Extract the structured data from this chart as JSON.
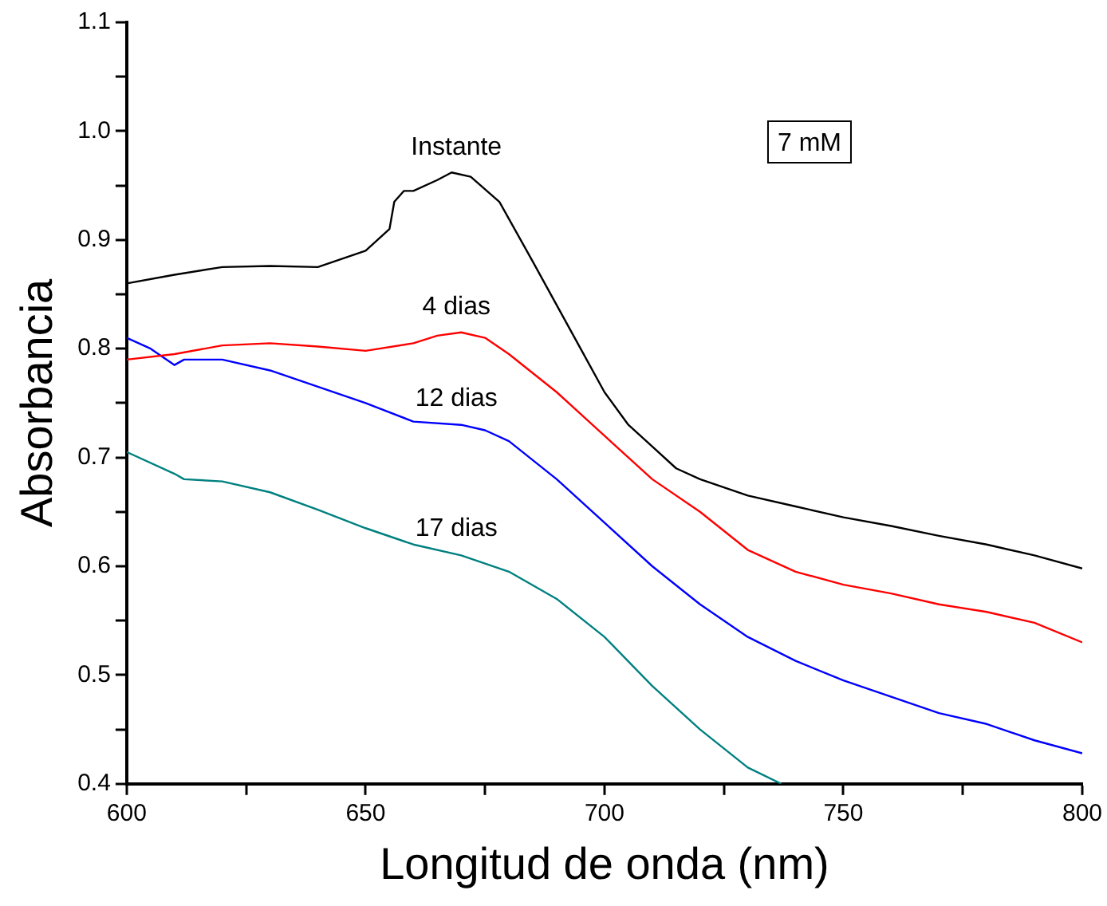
{
  "chart_data": {
    "type": "line",
    "xlabel": "Longitud de onda (nm)",
    "ylabel": "Absorbancia",
    "xlim": [
      600,
      800
    ],
    "ylim": [
      0.4,
      1.1
    ],
    "xticks": [
      600,
      650,
      700,
      750,
      800
    ],
    "yticks": [
      0.4,
      0.5,
      0.6,
      0.7,
      0.8,
      0.9,
      {
        "value": 1,
        "label": "1.0"
      },
      1.1
    ],
    "grid": false,
    "legend": false,
    "marker": "none",
    "line_style": "solid",
    "x": [
      600,
      610,
      620,
      630,
      640,
      650,
      655,
      656,
      658,
      660,
      665,
      668,
      672,
      678,
      685,
      690,
      695,
      700,
      705,
      710,
      715,
      720,
      730,
      740,
      750,
      760,
      770,
      780,
      790,
      800
    ],
    "series": [
      {
        "name": "Instante",
        "color": "#000000",
        "values": [
          0.86,
          0.868,
          0.875,
          0.876,
          0.875,
          0.89,
          0.91,
          0.935,
          0.945,
          0.945,
          0.955,
          0.962,
          0.958,
          0.935,
          0.88,
          0.84,
          0.8,
          0.76,
          0.73,
          0.71,
          0.69,
          0.68,
          0.665,
          0.655,
          0.645,
          0.637,
          0.628,
          0.62,
          0.61,
          0.598
        ]
      },
      {
        "name": "4 dias",
        "color": "#ff0000",
        "x": [
          600,
          610,
          620,
          630,
          640,
          650,
          660,
          665,
          670,
          675,
          680,
          690,
          700,
          710,
          720,
          730,
          740,
          750,
          760,
          770,
          780,
          790,
          800
        ],
        "values": [
          0.79,
          0.795,
          0.803,
          0.805,
          0.802,
          0.798,
          0.805,
          0.812,
          0.815,
          0.81,
          0.795,
          0.76,
          0.72,
          0.68,
          0.65,
          0.615,
          0.595,
          0.583,
          0.575,
          0.565,
          0.558,
          0.548,
          0.53
        ]
      },
      {
        "name": "12 dias",
        "color": "#0000ff",
        "x": [
          600,
          605,
          610,
          612,
          620,
          630,
          640,
          650,
          660,
          670,
          675,
          680,
          690,
          700,
          710,
          720,
          730,
          740,
          750,
          760,
          770,
          780,
          790,
          800
        ],
        "values": [
          0.81,
          0.8,
          0.785,
          0.79,
          0.79,
          0.78,
          0.765,
          0.75,
          0.733,
          0.73,
          0.725,
          0.715,
          0.68,
          0.64,
          0.6,
          0.565,
          0.535,
          0.513,
          0.495,
          0.48,
          0.465,
          0.455,
          0.44,
          0.428
        ]
      },
      {
        "name": "17 dias",
        "color": "#008080",
        "x": [
          600,
          610,
          612,
          620,
          630,
          640,
          650,
          660,
          670,
          680,
          690,
          700,
          710,
          720,
          730,
          737
        ],
        "values": [
          0.705,
          0.685,
          0.68,
          0.678,
          0.668,
          0.652,
          0.635,
          0.62,
          0.61,
          0.595,
          0.57,
          0.535,
          0.49,
          0.45,
          0.415,
          0.4
        ]
      }
    ],
    "annotations": [
      "7 mM"
    ]
  }
}
